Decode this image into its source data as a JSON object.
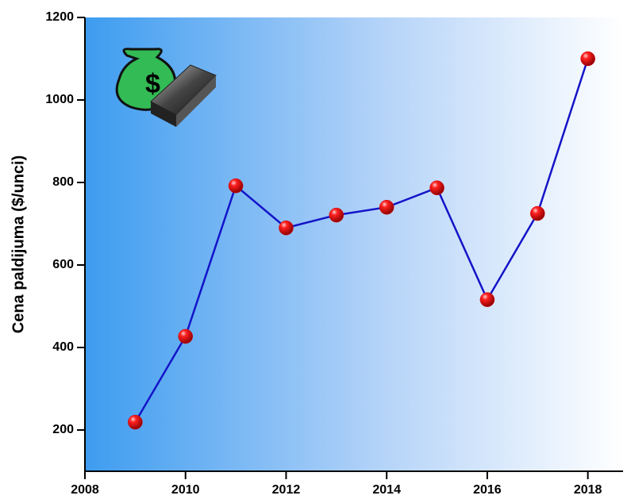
{
  "chart_data": {
    "type": "line",
    "y_label": "Cena paldijuma ($/unci)",
    "x": [
      2009,
      2010,
      2011,
      2012,
      2013,
      2014,
      2015,
      2016,
      2017,
      2018
    ],
    "series": [
      {
        "color": "#1414c8",
        "marker_color": "#e00000",
        "values": [
          219,
          427,
          792,
          690,
          721,
          740,
          787,
          516,
          725,
          1100
        ]
      }
    ],
    "xlim": [
      2008,
      2018.7
    ],
    "xticks": [
      2008,
      2010,
      2012,
      2014,
      2016,
      2018
    ],
    "ylim": [
      100,
      1200
    ],
    "yticks": [
      200,
      400,
      600,
      800,
      1000,
      1200
    ]
  }
}
